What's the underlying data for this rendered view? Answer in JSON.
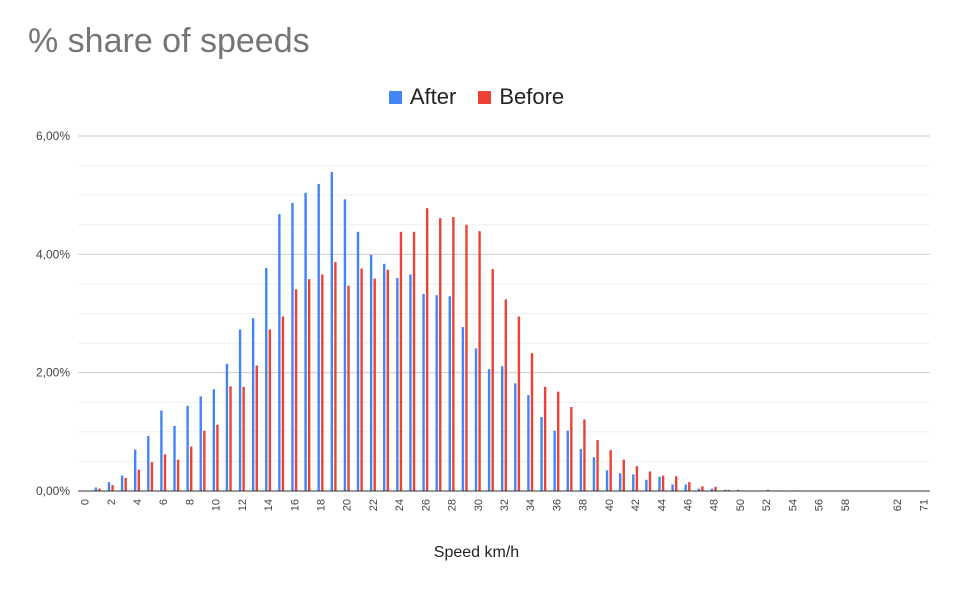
{
  "chart_data": {
    "type": "bar",
    "title": "% share of speeds",
    "xlabel": "Speed km/h",
    "ylabel": "",
    "ylim": [
      0,
      6
    ],
    "y_ticks": [
      "0,00%",
      "2,00%",
      "4,00%",
      "6,00%"
    ],
    "y_tick_values": [
      0,
      2,
      4,
      6
    ],
    "legend_position": "top",
    "grid": true,
    "categories": [
      "0",
      "1",
      "2",
      "3",
      "4",
      "5",
      "6",
      "7",
      "8",
      "9",
      "10",
      "11",
      "12",
      "13",
      "14",
      "15",
      "16",
      "17",
      "18",
      "19",
      "20",
      "21",
      "22",
      "23",
      "24",
      "25",
      "26",
      "27",
      "28",
      "29",
      "30",
      "31",
      "32",
      "33",
      "34",
      "35",
      "36",
      "37",
      "38",
      "39",
      "40",
      "41",
      "42",
      "43",
      "44",
      "45",
      "46",
      "47",
      "48",
      "49",
      "50",
      "51",
      "52",
      "53",
      "54",
      "55",
      "56",
      "57",
      "58",
      "59",
      "60",
      "61",
      "62",
      "63",
      "71"
    ],
    "x_tick_labels": [
      "0",
      "2",
      "4",
      "6",
      "8",
      "10",
      "12",
      "14",
      "16",
      "18",
      "20",
      "22",
      "24",
      "26",
      "28",
      "30",
      "32",
      "34",
      "36",
      "38",
      "40",
      "42",
      "44",
      "46",
      "48",
      "50",
      "52",
      "54",
      "56",
      "58",
      "62",
      "71"
    ],
    "series": [
      {
        "name": "After",
        "color": "#4285f4",
        "values": [
          0.0,
          0.06,
          0.15,
          0.26,
          0.7,
          0.93,
          1.36,
          1.1,
          1.44,
          1.6,
          1.72,
          2.15,
          2.73,
          2.92,
          3.77,
          4.68,
          4.87,
          5.04,
          5.19,
          5.39,
          4.93,
          4.38,
          3.99,
          3.84,
          3.6,
          3.66,
          3.33,
          3.31,
          3.29,
          2.77,
          2.41,
          2.06,
          2.11,
          1.82,
          1.62,
          1.25,
          1.02,
          1.02,
          0.71,
          0.57,
          0.35,
          0.3,
          0.28,
          0.19,
          0.24,
          0.11,
          0.11,
          0.04,
          0.04,
          0.02,
          0.02,
          0.0,
          0.0,
          0.0,
          0.0,
          0.0,
          0.0,
          0.0,
          0.0,
          0.0,
          0.0,
          0.0,
          0.0,
          0.0,
          0.0
        ]
      },
      {
        "name": "Before",
        "color": "#ea4335",
        "values": [
          0.0,
          0.04,
          0.1,
          0.22,
          0.36,
          0.49,
          0.62,
          0.53,
          0.75,
          1.02,
          1.12,
          1.77,
          1.76,
          2.12,
          2.73,
          2.95,
          3.41,
          3.58,
          3.66,
          3.87,
          3.47,
          3.76,
          3.59,
          3.74,
          4.38,
          4.38,
          4.78,
          4.61,
          4.63,
          4.5,
          4.39,
          3.75,
          3.24,
          2.95,
          2.33,
          1.76,
          1.68,
          1.42,
          1.21,
          0.86,
          0.69,
          0.53,
          0.42,
          0.33,
          0.26,
          0.25,
          0.15,
          0.08,
          0.07,
          0.02,
          0.01,
          0.0,
          0.02,
          0.01,
          0.01,
          0.0,
          0.0,
          0.0,
          0.0,
          0.0,
          0.0,
          0.0,
          0.0,
          0.0,
          0.0
        ]
      }
    ]
  }
}
